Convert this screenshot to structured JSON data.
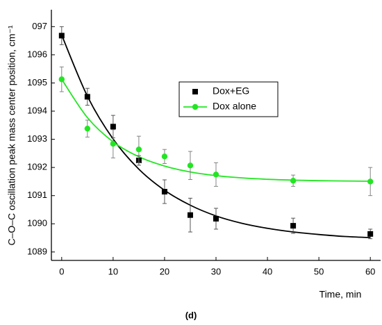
{
  "chart_data": {
    "type": "scatter",
    "caption": "(d)",
    "x_label": "Time, min",
    "y_label": "C–O–C oscillation peak mass center position, cm⁻¹",
    "xlim": [
      -2,
      62
    ],
    "ylim": [
      1088.7,
      1097.6
    ],
    "xticks": [
      0,
      10,
      20,
      30,
      40,
      50,
      60
    ],
    "yticks": [
      {
        "value": 1097,
        "label": "097"
      },
      1096,
      1095,
      1094,
      1093,
      1092,
      1091,
      1090,
      1089
    ],
    "legend": "upper center",
    "series": [
      {
        "name": "Dox+EG",
        "color": "#000000",
        "marker": "square",
        "x": [
          0,
          5,
          10,
          15,
          20,
          25,
          30,
          45,
          60
        ],
        "values": [
          1096.68,
          1094.51,
          1093.45,
          1092.25,
          1091.14,
          1090.31,
          1090.18,
          1089.93,
          1089.64
        ],
        "errors": [
          0.32,
          0.3,
          0.4,
          0.17,
          0.42,
          0.6,
          0.37,
          0.27,
          0.17
        ],
        "fit_x": [
          0,
          5,
          10,
          15,
          20,
          25,
          30,
          35,
          40,
          45,
          50,
          55,
          60
        ],
        "fit_values": [
          1096.7,
          1094.53,
          1093.01,
          1091.94,
          1091.19,
          1090.66,
          1090.28,
          1090.02,
          1089.84,
          1089.71,
          1089.62,
          1089.55,
          1089.51
        ]
      },
      {
        "name": "Dox alone",
        "color": "#22e622",
        "marker": "circle",
        "x": [
          0,
          5,
          10,
          15,
          20,
          25,
          30,
          45,
          60
        ],
        "values": [
          1095.13,
          1093.38,
          1092.84,
          1092.64,
          1092.39,
          1092.07,
          1091.75,
          1091.53,
          1091.5
        ],
        "errors": [
          0.44,
          0.3,
          0.5,
          0.47,
          0.25,
          0.5,
          0.42,
          0.2,
          0.5
        ],
        "fit_x": [
          0,
          5,
          10,
          15,
          20,
          25,
          30,
          35,
          40,
          45,
          50,
          55,
          60
        ],
        "fit_values": [
          1095.13,
          1093.77,
          1092.91,
          1092.38,
          1092.05,
          1091.84,
          1091.71,
          1091.63,
          1091.58,
          1091.55,
          1091.53,
          1091.52,
          1091.51
        ]
      }
    ]
  }
}
